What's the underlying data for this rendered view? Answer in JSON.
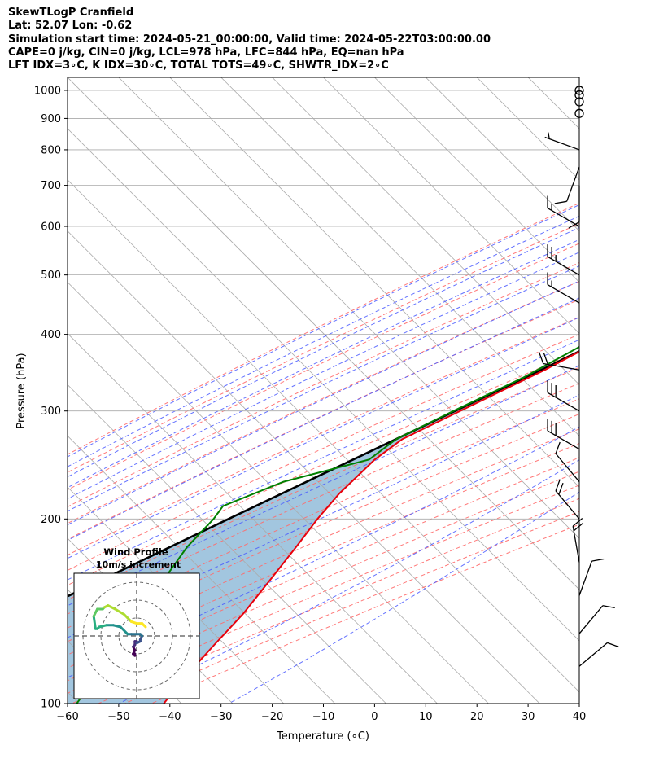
{
  "header": {
    "lines": [
      "SkewTLogP Cranfield",
      "Lat: 52.07   Lon: -0.62",
      "Simulation start time: 2024-05-21_00:00:00, Valid time: 2024-05-22T03:00:00.00",
      "CAPE=0 j/kg, CIN=0 j/kg, LCL=978 hPa, LFC=844 hPa, EQ=nan hPa",
      "LFT IDX=3∘C, K IDX=30∘C, TOTAL TOTS=49∘C, SHWTR_IDX=2∘C"
    ]
  },
  "chart_data": [
    {
      "type": "line",
      "title": "",
      "xlabel": "Temperature (∘C)",
      "ylabel": "Pressure (hPa)",
      "xlim": [
        -60,
        40
      ],
      "ylim": [
        1050,
        100
      ],
      "yscale": "log",
      "skew": true,
      "grid": true,
      "xticks": [
        -60,
        -50,
        -40,
        -30,
        -20,
        -10,
        0,
        10,
        20,
        30,
        40
      ],
      "yticks": [
        100,
        200,
        300,
        400,
        500,
        600,
        700,
        800,
        900,
        1000
      ],
      "colors": {
        "temperature": "#e8000b",
        "dewpoint": "#008000",
        "parcel": "#000000",
        "cape_fill": "#a2c6df",
        "dry_adiabats": "#ff6a6a",
        "moist_adiabats": "#4a5aff",
        "mixing_ratio": "#9a3fd1",
        "isotherms": "#aaaaaa"
      },
      "series": [
        {
          "role": "temperature",
          "p": [
            1000,
            975,
            950,
            925,
            900,
            850,
            800,
            750,
            700,
            650,
            600,
            550,
            500,
            450,
            400,
            350,
            300,
            270,
            250,
            220,
            200,
            180,
            160,
            140,
            125,
            110,
            100
          ],
          "t": [
            13.7,
            12.8,
            11.9,
            10.9,
            10.3,
            8.1,
            5.7,
            3.3,
            0.7,
            -2.1,
            -5.6,
            -10.1,
            -14.8,
            -20.3,
            -25.7,
            -31.9,
            -40.4,
            -46.2,
            -47.6,
            -47.9,
            -47.2,
            -45.9,
            -44.6,
            -43.2,
            -42.8,
            -42.2,
            -41.2
          ]
        },
        {
          "role": "dewpoint",
          "p": [
            1000,
            975,
            950,
            925,
            900,
            850,
            800,
            750,
            700,
            650,
            600,
            560,
            520,
            480,
            460,
            420,
            380,
            340,
            300,
            270,
            250,
            230,
            210,
            200,
            180,
            150,
            120,
            100
          ],
          "td": [
            12.2,
            11.9,
            10.9,
            9.7,
            8.6,
            6.0,
            3.6,
            1.3,
            -1.6,
            -4.5,
            -8.1,
            -11.6,
            -19.7,
            -25.9,
            -25.3,
            -26.2,
            -29.8,
            -34.6,
            -41.7,
            -47.4,
            -48.7,
            -61.1,
            -68.2,
            -67.5,
            -67.2,
            -64.5,
            -60.9,
            -58.2
          ]
        },
        {
          "role": "parcel",
          "p": [
            1000,
            978,
            950,
            900,
            850,
            800,
            750,
            700,
            650,
            600,
            550,
            500,
            450,
            400,
            350,
            300,
            250,
            200,
            150,
            100
          ],
          "t": [
            13.7,
            12.2,
            11.3,
            9.5,
            7.4,
            5.3,
            2.8,
            0.1,
            -2.8,
            -6.1,
            -10.0,
            -14.4,
            -19.3,
            -25.3,
            -32.6,
            -41.4,
            -51.8,
            -64.6,
            -80.8,
            -104.4
          ]
        }
      ],
      "wind_barbs": {
        "p": [
          1000,
          983,
          958,
          917,
          800,
          750,
          700,
          600,
          500,
          450,
          350,
          300,
          260,
          230,
          200,
          170,
          150,
          130,
          115
        ],
        "speed_kt": [
          0,
          0,
          0,
          0,
          5,
          10,
          10,
          15,
          25,
          15,
          20,
          30,
          30,
          10,
          20,
          20,
          10,
          10,
          10
        ],
        "dir_deg": [
          0,
          0,
          0,
          0,
          290,
          200,
          180,
          300,
          300,
          300,
          280,
          300,
          300,
          320,
          320,
          350,
          20,
          40,
          50
        ]
      }
    },
    {
      "type": "line",
      "title": "Wind Profile",
      "subtitle": "10m/s increment",
      "rings": [
        10,
        20,
        30
      ],
      "colormap": "viridis",
      "hodograph": {
        "u": [
          -1,
          -1,
          -2,
          -1,
          -2,
          -1,
          -1,
          0,
          0,
          2,
          2,
          3,
          2,
          0,
          -3,
          -5,
          -9,
          -13,
          -17,
          -21,
          -22,
          -23,
          -24,
          -22,
          -19,
          -18,
          -16,
          -12,
          -7,
          -3,
          0,
          3,
          4,
          5
        ],
        "v": [
          -11,
          -10,
          -10,
          -8,
          -6,
          -5,
          -3,
          -3,
          -4,
          -3,
          -2,
          0,
          1,
          1,
          1,
          1,
          5,
          6,
          6,
          5,
          4,
          4,
          11,
          15,
          15,
          16,
          17,
          15,
          12,
          8,
          7,
          7,
          6,
          5
        ]
      }
    }
  ]
}
